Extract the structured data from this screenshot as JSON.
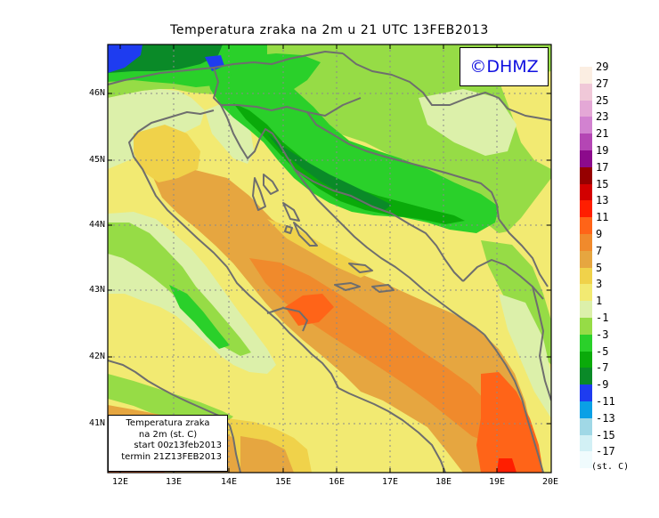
{
  "title": "Temperatura zraka na 2m u 21 UTC 13FEB2013",
  "watermark": "©DHMZ",
  "info_box": {
    "line1": "Temperatura zraka",
    "line2": "na 2m (st. C)",
    "line3": "start 00z13feb2013",
    "line4": "termin 21Z13FEB2013"
  },
  "lat_labels": [
    "46N",
    "45N",
    "44N",
    "43N",
    "42N",
    "41N"
  ],
  "lon_labels": [
    "12E",
    "13E",
    "14E",
    "15E",
    "16E",
    "17E",
    "18E",
    "19E",
    "20E"
  ],
  "legend": {
    "unit": "(st. C)",
    "levels": [
      {
        "label": "29",
        "color": "#fbeee2"
      },
      {
        "label": "27",
        "color": "#f0c8d8"
      },
      {
        "label": "25",
        "color": "#e4a8d6"
      },
      {
        "label": "23",
        "color": "#d282d0"
      },
      {
        "label": "21",
        "color": "#b446b4"
      },
      {
        "label": "19",
        "color": "#8c0a8c"
      },
      {
        "label": "17",
        "color": "#960000"
      },
      {
        "label": "15",
        "color": "#d20000"
      },
      {
        "label": "13",
        "color": "#ff1e00"
      },
      {
        "label": "11",
        "color": "#ff6418"
      },
      {
        "label": "9",
        "color": "#f08a2c"
      },
      {
        "label": "7",
        "color": "#e6a640"
      },
      {
        "label": "5",
        "color": "#f0d24a"
      },
      {
        "label": "3",
        "color": "#f2ea72"
      },
      {
        "label": "1",
        "color": "#dcf0aa"
      },
      {
        "label": "-1",
        "color": "#96dc46"
      },
      {
        "label": "-3",
        "color": "#2ad02a"
      },
      {
        "label": "-5",
        "color": "#0aaa0a"
      },
      {
        "label": "-7",
        "color": "#0a8a28"
      },
      {
        "label": "-9",
        "color": "#1e3cf0"
      },
      {
        "label": "-11",
        "color": "#0aa0e6"
      },
      {
        "label": "-13",
        "color": "#a0d8e6"
      },
      {
        "label": "-15",
        "color": "#d2f0f5"
      },
      {
        "label": "-17",
        "color": "#f0fbfd"
      }
    ]
  }
}
